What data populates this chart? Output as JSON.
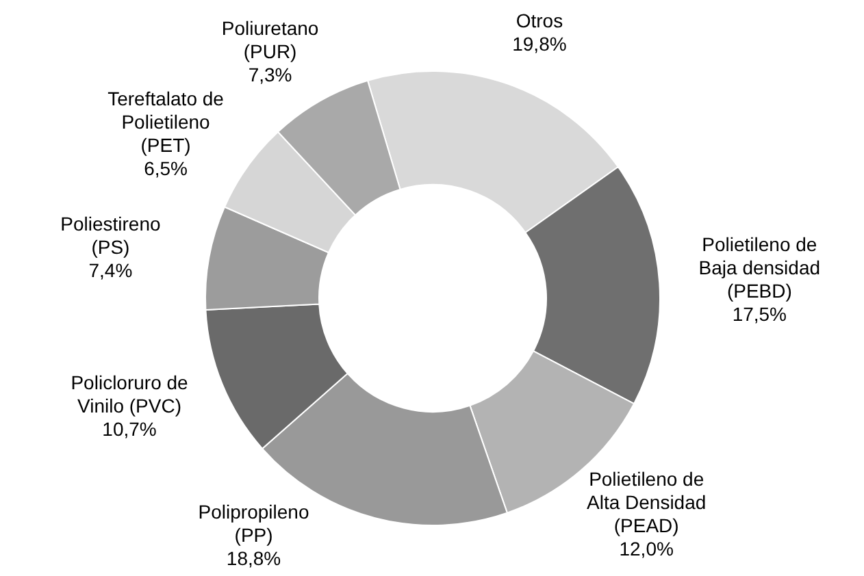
{
  "chart_data": {
    "type": "donut",
    "categories": [
      "Otros",
      "Polietileno de\nBaja densidad\n(PEBD)",
      "Polietileno de\nAlta Densidad\n(PEAD)",
      "Polipropileno\n(PP)",
      "Policloruro de\nVinilo (PVC)",
      "Poliestireno\n(PS)",
      "Tereftalato de\nPolietileno\n(PET)",
      "Poliuretano\n(PUR)"
    ],
    "values": [
      19.8,
      17.5,
      12.0,
      18.8,
      10.7,
      7.4,
      6.5,
      7.3
    ],
    "value_labels": [
      "19,8%",
      "17,5%",
      "12,0%",
      "18,8%",
      "10,7%",
      "7,4%",
      "6,5%",
      "7,3%"
    ],
    "colors": [
      "#d9d9d9",
      "#6f6f6f",
      "#b3b3b3",
      "#999999",
      "#6a6a6a",
      "#9c9c9c",
      "#d6d6d6",
      "#a9a9a9"
    ]
  }
}
